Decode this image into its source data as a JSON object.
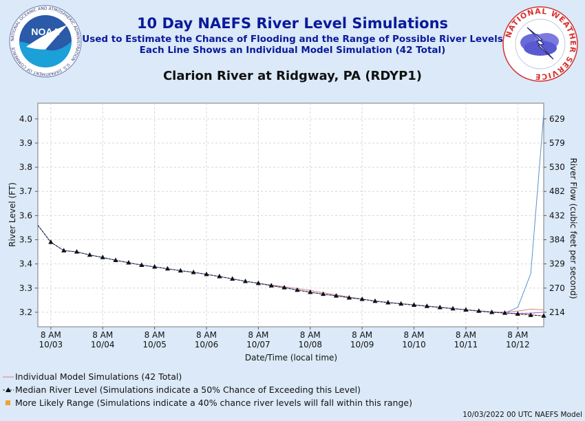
{
  "header": {
    "title": "10 Day NAEFS River Level Simulations",
    "subtitle1": "Used to Estimate the Chance of Flooding and the Range of Possible River Levels",
    "subtitle2": "Each Line Shows an Individual Model Simulation (42 Total)",
    "station": "Clarion River at Ridgway, PA (RDYP1)"
  },
  "logos": {
    "left_text": "NOAA",
    "left_ring": "NATIONAL OCEANIC AND ATMOSPHERIC ADMINISTRATION · U.S. DEPARTMENT OF COMMERCE",
    "right_ring": "NATIONAL WEATHER SERVICE"
  },
  "colors": {
    "background": "#dbe9f8",
    "plot_bg": "#ffffff",
    "title": "#0a1a9a",
    "individual": "#d98080",
    "median": "#1a1a2a",
    "likely_range": "#f0a030",
    "spike": "#5b8ed0"
  },
  "chart_data": {
    "type": "line",
    "xlabel": "Date/Time (local time)",
    "ylabel": "River Level (FT)",
    "ylabel_right": "River Flow (cubic feet per second)",
    "ylim": [
      3.14,
      4.065
    ],
    "y_ticks": [
      3.2,
      3.3,
      3.4,
      3.5,
      3.6,
      3.7,
      3.8,
      3.9,
      4.0
    ],
    "y_tick_labels": [
      "3.2",
      "3.3",
      "3.4",
      "3.5",
      "3.6",
      "3.7",
      "3.8",
      "3.9",
      "4.0"
    ],
    "y_right_ticks": [
      {
        "level": 3.2,
        "label": "214"
      },
      {
        "level": 3.3,
        "label": "270"
      },
      {
        "level": 3.4,
        "label": "329"
      },
      {
        "level": 3.5,
        "label": "384"
      },
      {
        "level": 3.6,
        "label": "432"
      },
      {
        "level": 3.7,
        "label": "482"
      },
      {
        "level": 3.8,
        "label": "530"
      },
      {
        "level": 3.9,
        "label": "579"
      },
      {
        "level": 4.0,
        "label": "629"
      }
    ],
    "x_range_hours": [
      0,
      234
    ],
    "x_ticks": [
      {
        "hour": 6,
        "time": "8 AM",
        "date": "10/03"
      },
      {
        "hour": 30,
        "time": "8 AM",
        "date": "10/04"
      },
      {
        "hour": 54,
        "time": "8 AM",
        "date": "10/05"
      },
      {
        "hour": 78,
        "time": "8 AM",
        "date": "10/06"
      },
      {
        "hour": 102,
        "time": "8 AM",
        "date": "10/07"
      },
      {
        "hour": 126,
        "time": "8 AM",
        "date": "10/08"
      },
      {
        "hour": 150,
        "time": "8 AM",
        "date": "10/09"
      },
      {
        "hour": 174,
        "time": "8 AM",
        "date": "10/10"
      },
      {
        "hour": 198,
        "time": "8 AM",
        "date": "10/11"
      },
      {
        "hour": 222,
        "time": "8 AM",
        "date": "10/12"
      }
    ],
    "series": [
      {
        "x": [
          0,
          6,
          12,
          18,
          24,
          30,
          36,
          42,
          48,
          54,
          60,
          66,
          72,
          78,
          84,
          90,
          96,
          102,
          108,
          114,
          120,
          126,
          132,
          138,
          144,
          150,
          156,
          162,
          168,
          174,
          180,
          186,
          192,
          198,
          204,
          210,
          216,
          222,
          228,
          234
        ],
        "values": [
          3.56,
          3.49,
          3.455,
          3.45,
          3.437,
          3.427,
          3.415,
          3.405,
          3.395,
          3.388,
          3.38,
          3.372,
          3.365,
          3.357,
          3.348,
          3.338,
          3.328,
          3.32,
          3.31,
          3.302,
          3.292,
          3.283,
          3.275,
          3.268,
          3.26,
          3.254,
          3.246,
          3.24,
          3.235,
          3.23,
          3.225,
          3.22,
          3.215,
          3.21,
          3.205,
          3.2,
          3.197,
          3.193,
          3.19,
          3.185
        ]
      },
      {
        "x": [
          0,
          6,
          12,
          18,
          24,
          30,
          36,
          42,
          48,
          54,
          60,
          66,
          72,
          78,
          84,
          90,
          96,
          102,
          108,
          114,
          120,
          126,
          132,
          138,
          144,
          150,
          156,
          162,
          168,
          174,
          180,
          186,
          192,
          198,
          204,
          210,
          216,
          222,
          228,
          234
        ],
        "values": [
          3.56,
          3.49,
          3.455,
          3.45,
          3.437,
          3.427,
          3.415,
          3.405,
          3.395,
          3.388,
          3.38,
          3.372,
          3.365,
          3.357,
          3.348,
          3.338,
          3.328,
          3.32,
          3.313,
          3.306,
          3.298,
          3.29,
          3.281,
          3.272,
          3.263,
          3.255,
          3.247,
          3.241,
          3.236,
          3.231,
          3.226,
          3.221,
          3.216,
          3.211,
          3.206,
          3.202,
          3.2,
          3.205,
          3.213,
          3.21
        ]
      },
      {
        "x": [
          0,
          6,
          12,
          18,
          24,
          30,
          36,
          42,
          48,
          54,
          60,
          66,
          72,
          78,
          84,
          90,
          96,
          102,
          108,
          114,
          120,
          126,
          132,
          138,
          144,
          150,
          156,
          162,
          168,
          174,
          180,
          186,
          192,
          198,
          204,
          210,
          216,
          222,
          228,
          234
        ],
        "values": [
          3.56,
          3.49,
          3.455,
          3.45,
          3.437,
          3.427,
          3.415,
          3.405,
          3.395,
          3.388,
          3.38,
          3.372,
          3.365,
          3.357,
          3.348,
          3.338,
          3.328,
          3.32,
          3.31,
          3.302,
          3.292,
          3.283,
          3.275,
          3.268,
          3.26,
          3.254,
          3.246,
          3.24,
          3.235,
          3.23,
          3.225,
          3.22,
          3.215,
          3.21,
          3.205,
          3.2,
          3.197,
          3.195,
          3.196,
          3.2
        ]
      },
      {
        "x": [
          0,
          6,
          12,
          18,
          24,
          30,
          36,
          42,
          48,
          54,
          60,
          66,
          72,
          78,
          84,
          90,
          96,
          102,
          108,
          114,
          120,
          126,
          132,
          138,
          144,
          150,
          156,
          162,
          168,
          174,
          180,
          186,
          192,
          198,
          204,
          210,
          216,
          222,
          228,
          234
        ],
        "values": [
          3.56,
          3.49,
          3.455,
          3.45,
          3.437,
          3.427,
          3.415,
          3.405,
          3.395,
          3.388,
          3.38,
          3.372,
          3.365,
          3.357,
          3.348,
          3.338,
          3.328,
          3.32,
          3.31,
          3.302,
          3.292,
          3.283,
          3.275,
          3.268,
          3.26,
          3.254,
          3.246,
          3.24,
          3.235,
          3.23,
          3.225,
          3.22,
          3.215,
          3.21,
          3.205,
          3.2,
          3.197,
          3.22,
          3.36,
          4.02
        ]
      }
    ],
    "median": {
      "name": "Median River Level (Simulations indicate a 50% Chance of Exceeding this Level)",
      "x": [
        0,
        6,
        12,
        18,
        24,
        30,
        36,
        42,
        48,
        54,
        60,
        66,
        72,
        78,
        84,
        90,
        96,
        102,
        108,
        114,
        120,
        126,
        132,
        138,
        144,
        150,
        156,
        162,
        168,
        174,
        180,
        186,
        192,
        198,
        204,
        210,
        216,
        222,
        228,
        234
      ],
      "values": [
        3.56,
        3.49,
        3.455,
        3.45,
        3.437,
        3.427,
        3.415,
        3.405,
        3.395,
        3.388,
        3.38,
        3.372,
        3.365,
        3.357,
        3.348,
        3.338,
        3.328,
        3.32,
        3.31,
        3.302,
        3.292,
        3.283,
        3.275,
        3.268,
        3.26,
        3.254,
        3.246,
        3.24,
        3.235,
        3.23,
        3.225,
        3.22,
        3.215,
        3.21,
        3.205,
        3.2,
        3.197,
        3.193,
        3.188,
        3.185
      ]
    },
    "grid": true,
    "legend_position": "bottom-left"
  },
  "legend": {
    "individual": "Individual Model Simulations (42 Total)",
    "median": "Median River Level (Simulations indicate a 50% Chance of Exceeding this Level)",
    "likely": "More Likely Range (Simulations indicate a 40% chance river levels will fall within this range)"
  },
  "footer": "10/03/2022 00 UTC NAEFS Model"
}
